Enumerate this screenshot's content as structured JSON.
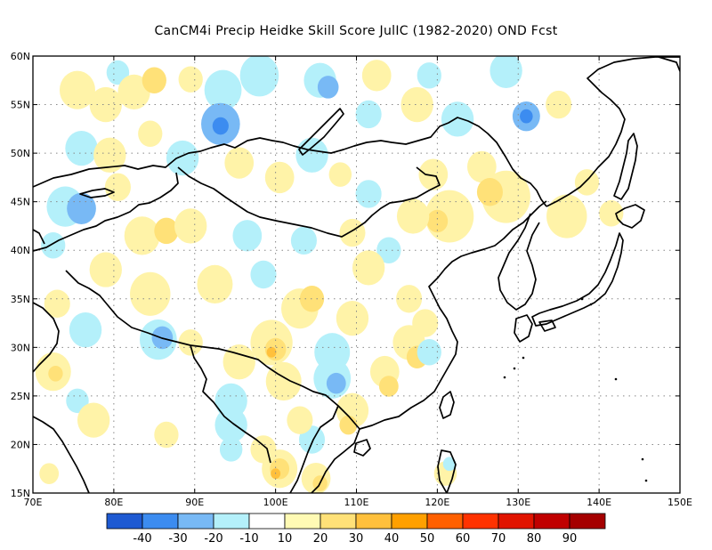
{
  "title": "CanCM4i Precip Heidke Skill Score JulIC (1982-2020) OND Fcst",
  "map": {
    "lon_range": [
      70,
      150
    ],
    "lat_range": [
      15,
      60
    ],
    "lon_ticks": [
      {
        "v": 70,
        "label": "70E"
      },
      {
        "v": 80,
        "label": "80E"
      },
      {
        "v": 90,
        "label": "90E"
      },
      {
        "v": 100,
        "label": "100E"
      },
      {
        "v": 110,
        "label": "110E"
      },
      {
        "v": 120,
        "label": "120E"
      },
      {
        "v": 130,
        "label": "130E"
      },
      {
        "v": 140,
        "label": "140E"
      },
      {
        "v": 150,
        "label": "150E"
      }
    ],
    "lat_ticks": [
      {
        "v": 15,
        "label": "15N"
      },
      {
        "v": 20,
        "label": "20N"
      },
      {
        "v": 25,
        "label": "25N"
      },
      {
        "v": 30,
        "label": "30N"
      },
      {
        "v": 35,
        "label": "35N"
      },
      {
        "v": 40,
        "label": "40N"
      },
      {
        "v": 45,
        "label": "45N"
      },
      {
        "v": 50,
        "label": "50N"
      },
      {
        "v": 55,
        "label": "55N"
      },
      {
        "v": 60,
        "label": "60N"
      }
    ],
    "grid": true
  },
  "colorbar": {
    "colors": [
      "#1e5ad2",
      "#3c8cf0",
      "#78b9f5",
      "#b4f0fa",
      "#ffffff",
      "#fffab4",
      "#ffe178",
      "#ffc03c",
      "#ffa000",
      "#ff6000",
      "#ff3200",
      "#e11400",
      "#c00000",
      "#a50000"
    ],
    "labels": [
      "-40",
      "-30",
      "-20",
      "-10",
      "10",
      "20",
      "30",
      "40",
      "50",
      "60",
      "70",
      "80",
      "90"
    ]
  },
  "skill_patches": [
    {
      "lon": 75.5,
      "lat": 56.5,
      "r": 2.2,
      "v": 20
    },
    {
      "lon": 79,
      "lat": 55,
      "r": 2.0,
      "v": 20
    },
    {
      "lon": 80.5,
      "lat": 58.3,
      "r": 1.4,
      "v": -10
    },
    {
      "lon": 82.5,
      "lat": 56.3,
      "r": 2.0,
      "v": 20
    },
    {
      "lon": 85.0,
      "lat": 57.5,
      "r": 1.5,
      "v": 30
    },
    {
      "lon": 89.5,
      "lat": 57.6,
      "r": 1.5,
      "v": 20
    },
    {
      "lon": 93.5,
      "lat": 56.5,
      "r": 2.3,
      "v": -10
    },
    {
      "lon": 93.2,
      "lat": 53.0,
      "r": 2.4,
      "v": -20
    },
    {
      "lon": 93.2,
      "lat": 52.8,
      "r": 1.0,
      "v": -30
    },
    {
      "lon": 98.0,
      "lat": 58.0,
      "r": 2.4,
      "v": -10
    },
    {
      "lon": 105.5,
      "lat": 57.5,
      "r": 2.0,
      "v": -10
    },
    {
      "lon": 106.5,
      "lat": 56.8,
      "r": 1.3,
      "v": -20
    },
    {
      "lon": 111.5,
      "lat": 54.0,
      "r": 1.6,
      "v": -10
    },
    {
      "lon": 112.5,
      "lat": 58.0,
      "r": 1.8,
      "v": 20
    },
    {
      "lon": 117.5,
      "lat": 55.0,
      "r": 2.0,
      "v": 20
    },
    {
      "lon": 119.0,
      "lat": 58.0,
      "r": 1.5,
      "v": -10
    },
    {
      "lon": 122.5,
      "lat": 53.5,
      "r": 2.0,
      "v": -10
    },
    {
      "lon": 128.5,
      "lat": 58.5,
      "r": 2.0,
      "v": -10
    },
    {
      "lon": 131.0,
      "lat": 53.8,
      "r": 1.7,
      "v": -20
    },
    {
      "lon": 131.0,
      "lat": 53.8,
      "r": 0.8,
      "v": -30
    },
    {
      "lon": 135.0,
      "lat": 55.0,
      "r": 1.6,
      "v": 20
    },
    {
      "lon": 76.0,
      "lat": 50.5,
      "r": 2.0,
      "v": -10
    },
    {
      "lon": 79.5,
      "lat": 49.8,
      "r": 2.0,
      "v": 20
    },
    {
      "lon": 84.5,
      "lat": 52.0,
      "r": 1.5,
      "v": 20
    },
    {
      "lon": 88.5,
      "lat": 49.5,
      "r": 2.0,
      "v": -10
    },
    {
      "lon": 95.5,
      "lat": 49.0,
      "r": 1.8,
      "v": 20
    },
    {
      "lon": 100.5,
      "lat": 47.5,
      "r": 1.8,
      "v": 20
    },
    {
      "lon": 104.5,
      "lat": 49.8,
      "r": 2.0,
      "v": -10
    },
    {
      "lon": 108.0,
      "lat": 47.8,
      "r": 1.4,
      "v": 20
    },
    {
      "lon": 111.5,
      "lat": 45.8,
      "r": 1.6,
      "v": -10
    },
    {
      "lon": 119.5,
      "lat": 47.8,
      "r": 1.8,
      "v": 20
    },
    {
      "lon": 125.5,
      "lat": 48.6,
      "r": 1.8,
      "v": 20
    },
    {
      "lon": 128.5,
      "lat": 45.5,
      "r": 3.0,
      "v": 20
    },
    {
      "lon": 126.5,
      "lat": 46.0,
      "r": 1.6,
      "v": 30
    },
    {
      "lon": 121.5,
      "lat": 43.5,
      "r": 3.0,
      "v": 20
    },
    {
      "lon": 120.0,
      "lat": 43.0,
      "r": 1.3,
      "v": 30
    },
    {
      "lon": 117.0,
      "lat": 43.5,
      "r": 2.0,
      "v": 20
    },
    {
      "lon": 136.0,
      "lat": 43.5,
      "r": 2.5,
      "v": 20
    },
    {
      "lon": 138.5,
      "lat": 47.0,
      "r": 1.5,
      "v": 20
    },
    {
      "lon": 141.5,
      "lat": 43.8,
      "r": 1.5,
      "v": 20
    },
    {
      "lon": 74.0,
      "lat": 44.5,
      "r": 2.3,
      "v": -10
    },
    {
      "lon": 76.0,
      "lat": 44.3,
      "r": 1.8,
      "v": -20
    },
    {
      "lon": 80.5,
      "lat": 46.5,
      "r": 1.6,
      "v": 20
    },
    {
      "lon": 72.5,
      "lat": 40.5,
      "r": 1.5,
      "v": -10
    },
    {
      "lon": 79.0,
      "lat": 38.0,
      "r": 2.0,
      "v": 20
    },
    {
      "lon": 83.5,
      "lat": 41.5,
      "r": 2.2,
      "v": 20
    },
    {
      "lon": 86.5,
      "lat": 42.0,
      "r": 1.5,
      "v": 30
    },
    {
      "lon": 89.5,
      "lat": 42.5,
      "r": 2.0,
      "v": 20
    },
    {
      "lon": 96.5,
      "lat": 41.5,
      "r": 1.8,
      "v": -10
    },
    {
      "lon": 103.5,
      "lat": 41.0,
      "r": 1.6,
      "v": -10
    },
    {
      "lon": 109.5,
      "lat": 41.8,
      "r": 1.6,
      "v": 20
    },
    {
      "lon": 114.0,
      "lat": 40.0,
      "r": 1.5,
      "v": -10
    },
    {
      "lon": 111.5,
      "lat": 38.2,
      "r": 2.0,
      "v": 20
    },
    {
      "lon": 84.5,
      "lat": 35.5,
      "r": 2.5,
      "v": 20
    },
    {
      "lon": 92.5,
      "lat": 36.5,
      "r": 2.2,
      "v": 20
    },
    {
      "lon": 98.5,
      "lat": 37.5,
      "r": 1.6,
      "v": -10
    },
    {
      "lon": 103.0,
      "lat": 34.0,
      "r": 2.3,
      "v": 20
    },
    {
      "lon": 104.5,
      "lat": 35.0,
      "r": 1.5,
      "v": 30
    },
    {
      "lon": 109.5,
      "lat": 33.0,
      "r": 2.0,
      "v": 20
    },
    {
      "lon": 116.5,
      "lat": 35.0,
      "r": 1.6,
      "v": 20
    },
    {
      "lon": 118.5,
      "lat": 32.5,
      "r": 1.6,
      "v": 20
    },
    {
      "lon": 76.5,
      "lat": 31.8,
      "r": 2.0,
      "v": -10
    },
    {
      "lon": 73.0,
      "lat": 34.5,
      "r": 1.6,
      "v": 20
    },
    {
      "lon": 72.5,
      "lat": 27.5,
      "r": 2.2,
      "v": 20
    },
    {
      "lon": 72.8,
      "lat": 27.3,
      "r": 0.9,
      "v": 30
    },
    {
      "lon": 75.5,
      "lat": 24.5,
      "r": 1.4,
      "v": -10
    },
    {
      "lon": 77.5,
      "lat": 22.5,
      "r": 2.0,
      "v": 20
    },
    {
      "lon": 72.0,
      "lat": 17.0,
      "r": 1.2,
      "v": 20
    },
    {
      "lon": 85.5,
      "lat": 30.8,
      "r": 2.3,
      "v": -10
    },
    {
      "lon": 86.0,
      "lat": 31.0,
      "r": 1.3,
      "v": -20
    },
    {
      "lon": 89.5,
      "lat": 30.5,
      "r": 1.5,
      "v": 20
    },
    {
      "lon": 95.5,
      "lat": 28.5,
      "r": 2.0,
      "v": 20
    },
    {
      "lon": 94.5,
      "lat": 24.5,
      "r": 2.0,
      "v": -10
    },
    {
      "lon": 94.5,
      "lat": 22.0,
      "r": 2.0,
      "v": -10
    },
    {
      "lon": 94.5,
      "lat": 19.5,
      "r": 1.4,
      "v": -10
    },
    {
      "lon": 99.5,
      "lat": 30.5,
      "r": 2.6,
      "v": 20
    },
    {
      "lon": 100.0,
      "lat": 29.8,
      "r": 1.3,
      "v": 30
    },
    {
      "lon": 99.5,
      "lat": 29.5,
      "r": 0.6,
      "v": 40
    },
    {
      "lon": 101.0,
      "lat": 26.5,
      "r": 2.2,
      "v": 20
    },
    {
      "lon": 107.0,
      "lat": 29.5,
      "r": 2.2,
      "v": -10
    },
    {
      "lon": 107.0,
      "lat": 26.8,
      "r": 2.3,
      "v": -10
    },
    {
      "lon": 107.5,
      "lat": 26.3,
      "r": 1.2,
      "v": -20
    },
    {
      "lon": 113.5,
      "lat": 27.5,
      "r": 1.8,
      "v": 20
    },
    {
      "lon": 114.0,
      "lat": 26.0,
      "r": 1.2,
      "v": 30
    },
    {
      "lon": 116.5,
      "lat": 30.5,
      "r": 2.0,
      "v": 20
    },
    {
      "lon": 117.5,
      "lat": 29.0,
      "r": 1.3,
      "v": 30
    },
    {
      "lon": 119.0,
      "lat": 29.5,
      "r": 1.5,
      "v": -10
    },
    {
      "lon": 104.5,
      "lat": 20.5,
      "r": 1.6,
      "v": -10
    },
    {
      "lon": 103.0,
      "lat": 22.5,
      "r": 1.6,
      "v": 20
    },
    {
      "lon": 109.5,
      "lat": 23.5,
      "r": 2.0,
      "v": 20
    },
    {
      "lon": 109.0,
      "lat": 22.0,
      "r": 1.1,
      "v": 30
    },
    {
      "lon": 86.5,
      "lat": 21.0,
      "r": 1.5,
      "v": 20
    },
    {
      "lon": 98.5,
      "lat": 19.5,
      "r": 1.6,
      "v": 20
    },
    {
      "lon": 100.5,
      "lat": 17.5,
      "r": 2.2,
      "v": 20
    },
    {
      "lon": 100.5,
      "lat": 17.5,
      "r": 1.2,
      "v": 30
    },
    {
      "lon": 100.0,
      "lat": 17.0,
      "r": 0.6,
      "v": 40
    },
    {
      "lon": 105.0,
      "lat": 16.5,
      "r": 1.8,
      "v": 20
    },
    {
      "lon": 105.5,
      "lat": 16.0,
      "r": 0.9,
      "v": 30
    },
    {
      "lon": 121.0,
      "lat": 17.0,
      "r": 1.4,
      "v": 20
    },
    {
      "lon": 121.5,
      "lat": 18.0,
      "r": 0.8,
      "v": -10
    }
  ]
}
